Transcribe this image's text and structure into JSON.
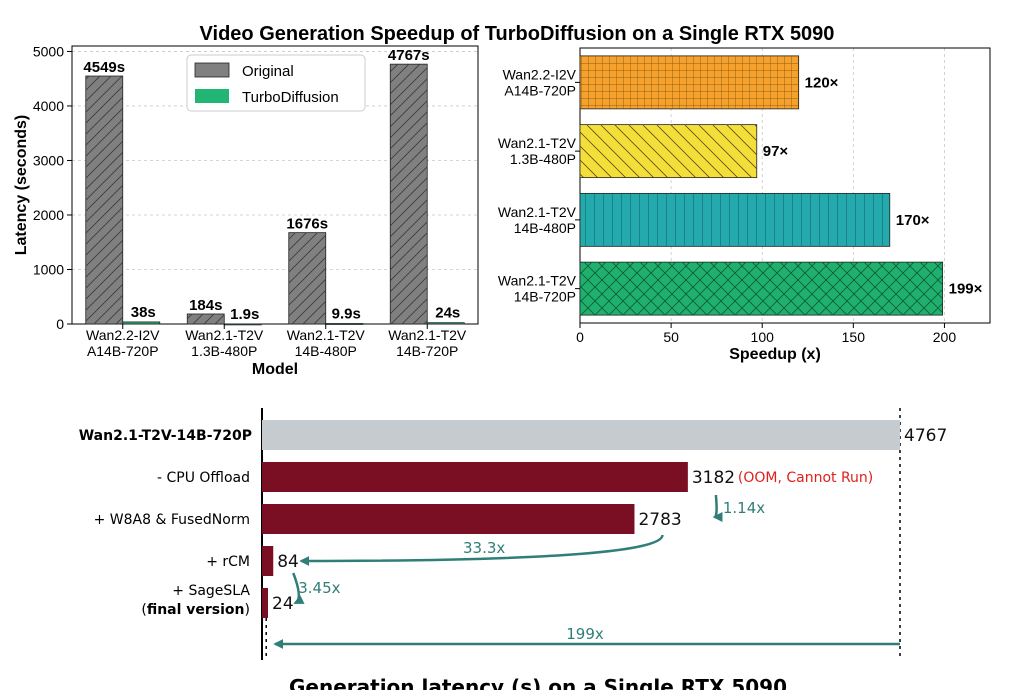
{
  "figure_title": "Video Generation Speedup of TurboDiffusion on a Single RTX 5090",
  "colors": {
    "original": "#808080",
    "turbo": "#22b573",
    "speedup": [
      "#f6a12b",
      "#f4de3a",
      "#24a9ad",
      "#1fb06e"
    ],
    "ablation_base": "#c6cbd0",
    "ablation_bar": "#7a0f23",
    "arrow": "#2f7f78",
    "note": "#e0201c"
  },
  "chart_data": [
    {
      "type": "bar",
      "title": "",
      "xlabel": "Model",
      "ylabel": "Latency (seconds)",
      "ylim": [
        0,
        5100
      ],
      "yticks": [
        0,
        1000,
        2000,
        3000,
        4000,
        5000
      ],
      "categories": [
        [
          "Wan2.2-I2V",
          "A14B-720P"
        ],
        [
          "Wan2.1-T2V",
          "1.3B-480P"
        ],
        [
          "Wan2.1-T2V",
          "14B-480P"
        ],
        [
          "Wan2.1-T2V",
          "14B-720P"
        ]
      ],
      "series": [
        {
          "name": "Original",
          "values": [
            4549,
            184,
            1676,
            4767
          ],
          "labels": [
            "4549s",
            "184s",
            "1676s",
            "4767s"
          ]
        },
        {
          "name": "TurboDiffusion",
          "values": [
            38,
            1.9,
            9.9,
            24
          ],
          "labels": [
            "38s",
            "1.9s",
            "9.9s",
            "24s"
          ]
        }
      ],
      "legend": "top-center",
      "grid": true
    },
    {
      "type": "bar",
      "orientation": "horizontal",
      "title": "",
      "xlabel": "Speedup (x)",
      "ylabel": "",
      "xlim": [
        0,
        225
      ],
      "xticks": [
        0,
        50,
        100,
        150,
        200
      ],
      "categories": [
        [
          "Wan2.2-I2V",
          "A14B-720P"
        ],
        [
          "Wan2.1-T2V",
          "1.3B-480P"
        ],
        [
          "Wan2.1-T2V",
          "14B-480P"
        ],
        [
          "Wan2.1-T2V",
          "14B-720P"
        ]
      ],
      "values": [
        120,
        97,
        170,
        199
      ],
      "labels": [
        "120×",
        "97×",
        "170×",
        "199×"
      ],
      "grid": true
    },
    {
      "type": "bar",
      "orientation": "horizontal",
      "title": "Generation latency (s) on a Single RTX 5090",
      "xlim": [
        0,
        4767
      ],
      "categories": [
        {
          "bold": "Wan2.1-T2V-14B-720P",
          "text": ""
        },
        {
          "text": "- CPU Offload"
        },
        {
          "text": "+ W8A8 & FusedNorm"
        },
        {
          "text": "+ rCM"
        },
        {
          "text": "+ SageSLA",
          "bold_sub": "final version"
        }
      ],
      "values": [
        4767,
        3182,
        2783,
        84,
        24
      ],
      "labels": [
        "4767",
        "3182",
        "2783",
        "84",
        "24"
      ],
      "note": "(OOM, Cannot Run)",
      "speedups": [
        {
          "from": 1,
          "to": 2,
          "label": "1.14x"
        },
        {
          "from": 2,
          "to": 3,
          "label": "33.3x"
        },
        {
          "from": 3,
          "to": 4,
          "label": "3.45x"
        },
        {
          "from": 0,
          "to": 4,
          "label": "199x"
        }
      ]
    }
  ]
}
